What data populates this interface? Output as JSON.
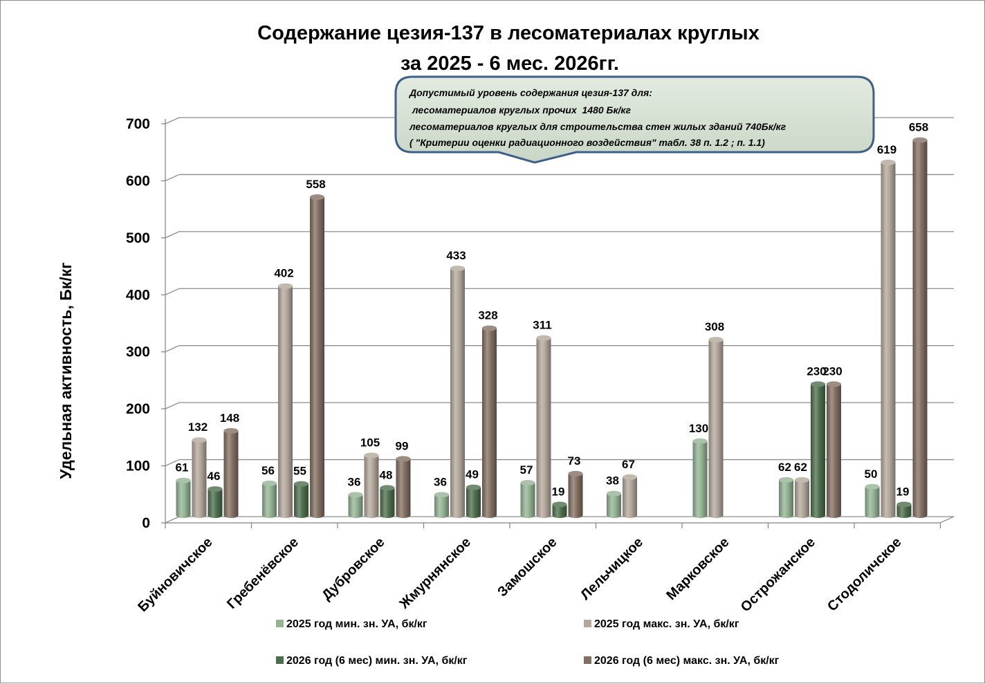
{
  "chart_data": {
    "type": "bar",
    "title": [
      "Содержание цезия-137 в лесоматериалах круглых",
      "за 2025 - 6 мес. 2026гг."
    ],
    "ylabel": "Удельная активность, Бк/кг",
    "ylim": [
      0,
      700
    ],
    "yticks": [
      "0",
      "100",
      "200",
      "300",
      "400",
      "500",
      "600",
      "700"
    ],
    "grid": true,
    "legend_position": "bottom",
    "categories": [
      "Буйновичское",
      "Гребенёвское",
      "Дубровское",
      "Жмурнянское",
      "Замошское",
      "Лельчицкое",
      "Марковское",
      "Острожанское",
      "Стодоличское"
    ],
    "series": [
      {
        "name": "2025 год мин. зн. УА, бк/кг",
        "color": "#93b393",
        "values": [
          61,
          56,
          36,
          36,
          57,
          38,
          130,
          62,
          50
        ]
      },
      {
        "name": "2025 год макс. зн. УА, бк/кг",
        "color": "#b3a79b",
        "values": [
          132,
          402,
          105,
          433,
          311,
          67,
          308,
          62,
          619
        ]
      },
      {
        "name": "2026 год (6 мес) мин. зн. УА, бк/кг",
        "color": "#4d6e4d",
        "values": [
          46,
          55,
          48,
          49,
          19,
          null,
          null,
          230,
          19
        ]
      },
      {
        "name": "2026 год (6 мес) макс. зн. УА, бк/кг",
        "color": "#836f62",
        "values": [
          148,
          558,
          99,
          328,
          73,
          null,
          null,
          230,
          658
        ]
      }
    ],
    "annotation": [
      "Допустимый уровень содержания цезия-137 для:",
      " лесоматериалов круглых прочих  1480 Бк/кг",
      "лесоматериалов круглых для строительства стен жилых зданий 740Бк/кг",
      "( \"Критерии оценки радиационного воздействия\" табл. 38 п. 1.2 ; п. 1.1)"
    ]
  }
}
